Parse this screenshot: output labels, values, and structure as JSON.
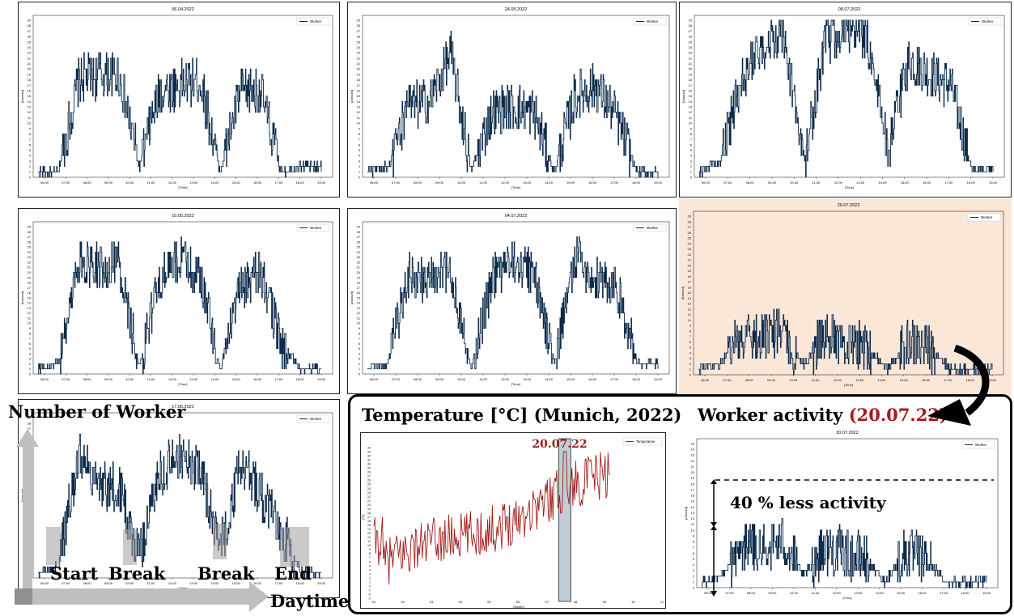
{
  "common": {
    "x_label": "[Time]",
    "y_label": "[Amount]",
    "legend_label": "Worker",
    "x_ticks": [
      "06:00",
      "07:00",
      "08:00",
      "09:00",
      "10:00",
      "11:00",
      "12:00",
      "13:00",
      "14:00",
      "15:00",
      "16:00",
      "17:00",
      "18:00",
      "19:00"
    ],
    "line_color": "#0d2b4a"
  },
  "panels": [
    {
      "id": "p1",
      "title": "06.04.2022",
      "ymax": 29,
      "profile": [
        1,
        1,
        18,
        19,
        19,
        2,
        16,
        17,
        18,
        1,
        16,
        16,
        1,
        2,
        2
      ]
    },
    {
      "id": "p2",
      "title": "24.05.2022",
      "ymax": 29,
      "profile": [
        1,
        2,
        13,
        14,
        23,
        1,
        12,
        13,
        12,
        1,
        15,
        17,
        11,
        1,
        1
      ]
    },
    {
      "id": "p3",
      "title": "08.07.2022",
      "ymax": 29,
      "profile": [
        1,
        3,
        18,
        24,
        26,
        3,
        25,
        27,
        26,
        5,
        22,
        19,
        17,
        1,
        2
      ]
    },
    {
      "id": "p4",
      "title": "10.05.2022",
      "ymax": 29,
      "profile": [
        1,
        2,
        22,
        21,
        22,
        1,
        19,
        23,
        19,
        1,
        17,
        20,
        6,
        1,
        1
      ]
    },
    {
      "id": "p5",
      "title": "04.07.2022",
      "ymax": 29,
      "profile": [
        1,
        2,
        20,
        18,
        21,
        1,
        19,
        22,
        20,
        2,
        23,
        19,
        17,
        2,
        2
      ]
    },
    {
      "id": "p6",
      "title": "20.07.2022",
      "ymax": 29,
      "profile": [
        1,
        2,
        7,
        7,
        8,
        2,
        7,
        6,
        5,
        1,
        6,
        5,
        1,
        1,
        1
      ]
    },
    {
      "id": "p7",
      "title": "17.05.2022",
      "ymax": 29,
      "profile": [
        1,
        2,
        22,
        17,
        16,
        4,
        19,
        22,
        20,
        5,
        21,
        15,
        9,
        1,
        1
      ]
    },
    {
      "id": "p8",
      "title": "20.07.2022",
      "ymax": 25,
      "profile": [
        1,
        2,
        7,
        7,
        8,
        2,
        7,
        6,
        5,
        1,
        6,
        5,
        1,
        1,
        1
      ]
    }
  ],
  "temperature_chart": {
    "legend_label": "Temperature",
    "x_label": "[Month]",
    "y_label": "[°C]",
    "x_ticks": [
      "01",
      "02",
      "03",
      "04",
      "05",
      "06",
      "07",
      "08",
      "09",
      "10",
      "11"
    ],
    "y_ticks": [
      -3,
      -2,
      -1,
      0,
      1,
      2,
      3,
      4,
      5,
      6,
      7,
      8,
      9,
      10,
      11,
      12,
      13,
      14,
      15,
      16,
      17,
      18,
      19,
      20,
      21,
      22,
      23,
      24,
      25,
      26,
      27,
      28,
      29,
      30,
      31,
      32,
      33,
      34
    ],
    "line_color": "#a31c1c",
    "highlight_label": "20.07.22"
  },
  "chart_data": [
    {
      "type": "line",
      "title": "06.04.2022",
      "xlabel": "[Time]",
      "ylabel": "[Amount]",
      "series": [
        {
          "name": "Worker",
          "x": [
            "06:00",
            "07:00",
            "08:00",
            "09:00",
            "10:00",
            "11:00",
            "12:00",
            "13:00",
            "14:00",
            "15:00",
            "16:00",
            "17:00",
            "18:00",
            "19:00"
          ],
          "values": [
            1,
            6,
            18,
            19,
            18,
            2,
            16,
            18,
            17,
            1,
            16,
            16,
            1,
            2
          ]
        }
      ]
    },
    {
      "type": "line",
      "title": "24.05.2022",
      "xlabel": "[Time]",
      "ylabel": "[Amount]",
      "series": [
        {
          "name": "Worker",
          "x": [
            "06:00",
            "07:00",
            "08:00",
            "09:00",
            "10:00",
            "11:00",
            "12:00",
            "13:00",
            "14:00",
            "15:00",
            "16:00",
            "17:00",
            "18:00",
            "19:00"
          ],
          "values": [
            1,
            4,
            13,
            15,
            20,
            1,
            12,
            13,
            12,
            1,
            15,
            17,
            11,
            1
          ]
        }
      ]
    },
    {
      "type": "line",
      "title": "08.07.2022",
      "xlabel": "[Time]",
      "ylabel": "[Amount]",
      "series": [
        {
          "name": "Worker",
          "x": [
            "06:00",
            "07:00",
            "08:00",
            "09:00",
            "10:00",
            "11:00",
            "12:00",
            "13:00",
            "14:00",
            "15:00",
            "16:00",
            "17:00",
            "18:00",
            "19:00"
          ],
          "values": [
            1,
            8,
            20,
            24,
            24,
            3,
            25,
            27,
            25,
            5,
            22,
            19,
            17,
            2
          ]
        }
      ]
    },
    {
      "type": "line",
      "title": "10.05.2022",
      "xlabel": "[Time]",
      "ylabel": "[Amount]",
      "series": [
        {
          "name": "Worker",
          "x": [
            "06:00",
            "07:00",
            "08:00",
            "09:00",
            "10:00",
            "11:00",
            "12:00",
            "13:00",
            "14:00",
            "15:00",
            "16:00",
            "17:00",
            "18:00",
            "19:00"
          ],
          "values": [
            1,
            3,
            22,
            21,
            22,
            1,
            19,
            23,
            19,
            1,
            17,
            20,
            6,
            1
          ]
        }
      ]
    },
    {
      "type": "line",
      "title": "04.07.2022",
      "xlabel": "[Time]",
      "ylabel": "[Amount]",
      "series": [
        {
          "name": "Worker",
          "x": [
            "06:00",
            "07:00",
            "08:00",
            "09:00",
            "10:00",
            "11:00",
            "12:00",
            "13:00",
            "14:00",
            "15:00",
            "16:00",
            "17:00",
            "18:00",
            "19:00"
          ],
          "values": [
            1,
            3,
            20,
            18,
            21,
            1,
            19,
            22,
            20,
            2,
            23,
            19,
            17,
            2
          ]
        }
      ]
    },
    {
      "type": "line",
      "title": "20.07.2022",
      "xlabel": "[Time]",
      "ylabel": "[Amount]",
      "series": [
        {
          "name": "Worker",
          "x": [
            "06:00",
            "07:00",
            "08:00",
            "09:00",
            "10:00",
            "11:00",
            "12:00",
            "13:00",
            "14:00",
            "15:00",
            "16:00",
            "17:00",
            "18:00",
            "19:00"
          ],
          "values": [
            1,
            3,
            7,
            7,
            8,
            2,
            7,
            6,
            5,
            1,
            6,
            5,
            1,
            1
          ]
        }
      ]
    },
    {
      "type": "line",
      "title": "17.05.2022",
      "xlabel": "[Time]",
      "ylabel": "[Amount]",
      "series": [
        {
          "name": "Worker",
          "x": [
            "06:00",
            "07:00",
            "08:00",
            "09:00",
            "10:00",
            "11:00",
            "12:00",
            "13:00",
            "14:00",
            "15:00",
            "16:00",
            "17:00",
            "18:00",
            "19:00"
          ],
          "values": [
            1,
            4,
            22,
            17,
            16,
            4,
            19,
            22,
            20,
            5,
            21,
            15,
            9,
            1
          ]
        }
      ]
    },
    {
      "type": "line",
      "xlabel": "[Month]",
      "ylabel": "[°C]",
      "series": [
        {
          "name": "Temperature",
          "x": [
            "01",
            "02",
            "03",
            "04",
            "05",
            "06",
            "07",
            "08",
            "09"
          ],
          "values": [
            9,
            3,
            6,
            12,
            16,
            20,
            24,
            22,
            21
          ]
        }
      ],
      "ylim": [
        -3,
        34
      ]
    },
    {
      "type": "line",
      "title": "20.07.2022",
      "xlabel": "[Time]",
      "ylabel": "[Amount]",
      "series": [
        {
          "name": "Worker",
          "x": [
            "06:00",
            "07:00",
            "08:00",
            "09:00",
            "10:00",
            "11:00",
            "12:00",
            "13:00",
            "14:00",
            "15:00",
            "16:00",
            "17:00",
            "18:00",
            "19:00"
          ],
          "values": [
            1,
            3,
            7,
            7,
            8,
            2,
            7,
            6,
            5,
            1,
            6,
            5,
            1,
            1
          ]
        }
      ]
    }
  ],
  "annotations": {
    "number_of_worker": "Number of Worker",
    "daytime": "Daytime",
    "start": "Start",
    "break1": "Break",
    "break2": "Break",
    "end": "End",
    "temp_title": "Temperature [°C] (Munich, 2022)",
    "worker_activity_prefix": "Worker activity ",
    "worker_activity_date": "(20.07.22)",
    "less_activity": "40 % less activity"
  },
  "colors": {
    "highlight_bg": "#fbe7d8",
    "accent_red": "#a31c1c",
    "worker_line": "#0d2b4a",
    "temp_box": "#a7b7c4"
  }
}
